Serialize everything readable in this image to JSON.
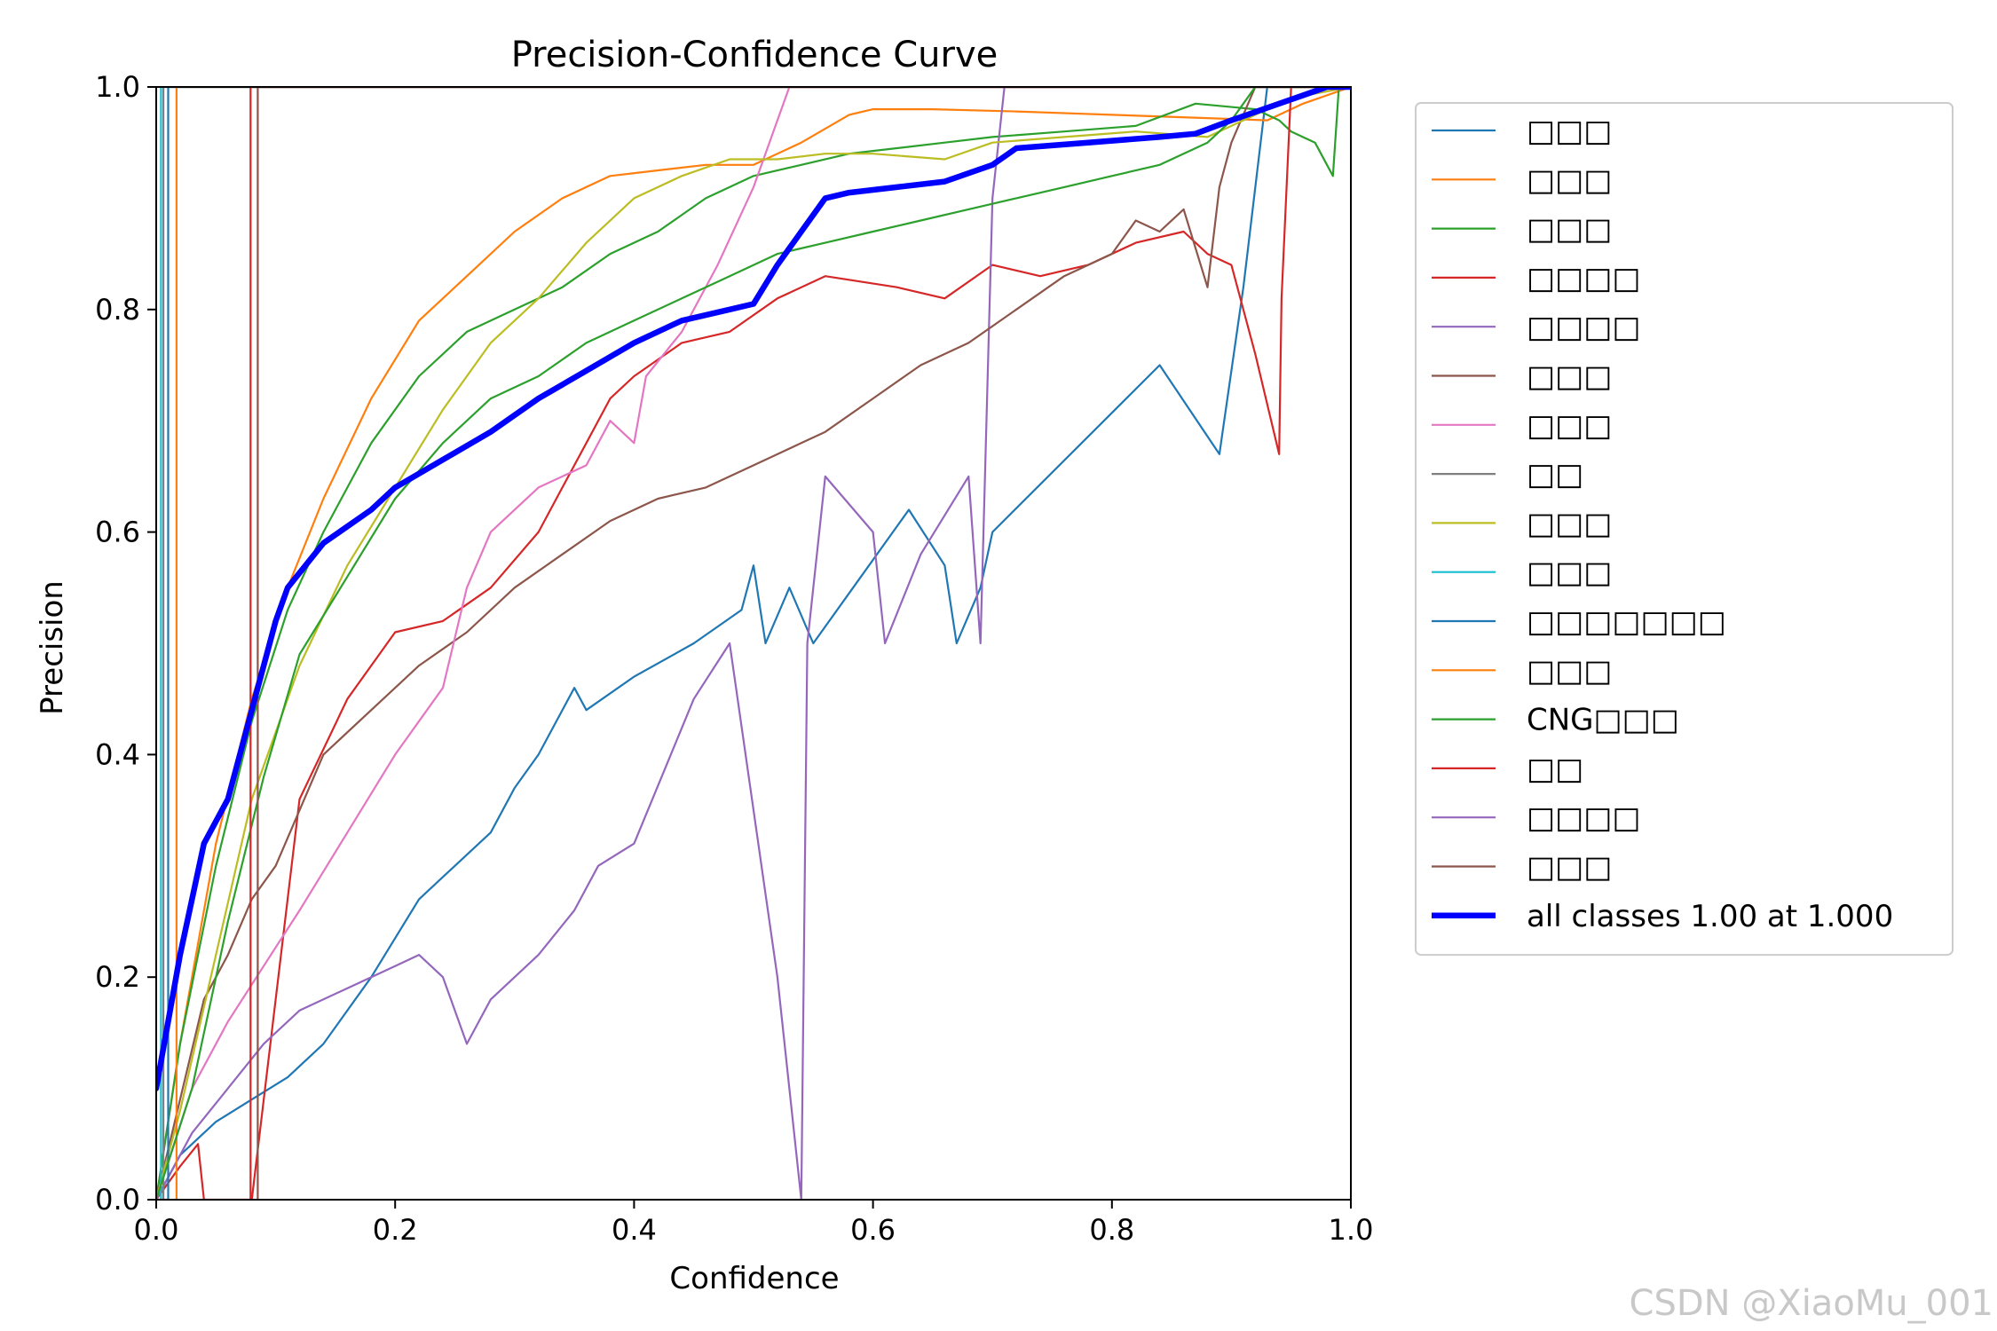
{
  "chart_data": {
    "type": "line",
    "title": "Precision-Confidence Curve",
    "xlabel": "Confidence",
    "ylabel": "Precision",
    "xlim": [
      0.0,
      1.0
    ],
    "ylim": [
      0.0,
      1.0
    ],
    "xticks": [
      "0.0",
      "0.2",
      "0.4",
      "0.6",
      "0.8",
      "1.0"
    ],
    "yticks": [
      "0.0",
      "0.2",
      "0.4",
      "0.6",
      "0.8",
      "1.0"
    ],
    "legend_position": "outside-right",
    "series": [
      {
        "name": "□□□",
        "color": "#1f77b4",
        "width": 2.2,
        "x": [
          0.0,
          0.02,
          0.05,
          0.08,
          0.11,
          0.14,
          0.18,
          0.22,
          0.25,
          0.28,
          0.3,
          0.32,
          0.35,
          0.36,
          0.4,
          0.45,
          0.49,
          0.5,
          0.51,
          0.53,
          0.55,
          0.59,
          0.63,
          0.66,
          0.67,
          0.69,
          0.7,
          0.84,
          0.89,
          0.91,
          0.93,
          0.96,
          0.98,
          1.0
        ],
        "y": [
          0.0,
          0.04,
          0.07,
          0.09,
          0.11,
          0.14,
          0.2,
          0.27,
          0.3,
          0.33,
          0.37,
          0.4,
          0.46,
          0.44,
          0.47,
          0.5,
          0.53,
          0.57,
          0.5,
          0.55,
          0.5,
          0.56,
          0.62,
          0.57,
          0.5,
          0.55,
          0.6,
          0.75,
          0.67,
          0.82,
          1.0,
          1.0,
          1.0,
          1.0
        ]
      },
      {
        "name": "□□□",
        "color": "#ff7f0e",
        "width": 2.2,
        "x": [
          0.0,
          0.02,
          0.05,
          0.08,
          0.11,
          0.14,
          0.18,
          0.22,
          0.26,
          0.3,
          0.34,
          0.38,
          0.42,
          0.46,
          0.5,
          0.54,
          0.58,
          0.6,
          0.65,
          0.72,
          0.8,
          0.88,
          0.93,
          0.96,
          1.0
        ],
        "y": [
          0.0,
          0.14,
          0.32,
          0.45,
          0.55,
          0.63,
          0.72,
          0.79,
          0.83,
          0.87,
          0.9,
          0.92,
          0.925,
          0.93,
          0.93,
          0.95,
          0.975,
          0.98,
          0.98,
          0.978,
          0.975,
          0.972,
          0.97,
          0.985,
          1.0
        ]
      },
      {
        "name": "□□□",
        "color": "#2ca02c",
        "width": 2.2,
        "x": [
          0.0,
          0.02,
          0.05,
          0.08,
          0.11,
          0.14,
          0.18,
          0.22,
          0.26,
          0.3,
          0.34,
          0.38,
          0.42,
          0.46,
          0.5,
          0.54,
          0.58,
          0.62,
          0.66,
          0.7,
          0.76,
          0.82,
          0.87,
          0.92,
          0.94,
          0.95,
          0.97,
          0.985,
          0.99,
          1.0
        ],
        "y": [
          0.0,
          0.14,
          0.3,
          0.43,
          0.53,
          0.6,
          0.68,
          0.74,
          0.78,
          0.8,
          0.82,
          0.85,
          0.87,
          0.9,
          0.92,
          0.93,
          0.94,
          0.945,
          0.95,
          0.955,
          0.96,
          0.965,
          0.985,
          0.98,
          0.97,
          0.96,
          0.95,
          0.92,
          1.0,
          1.0
        ]
      },
      {
        "name": "□□□□",
        "color": "#d62728",
        "width": 2.2,
        "x": [
          0.0,
          0.02,
          0.035,
          0.04,
          0.08,
          0.12,
          0.16,
          0.2,
          0.24,
          0.28,
          0.32,
          0.34,
          0.36,
          0.38,
          0.4,
          0.44,
          0.48,
          0.52,
          0.56,
          0.62,
          0.66,
          0.7,
          0.74,
          0.78,
          0.82,
          0.86,
          0.88,
          0.9,
          0.92,
          0.94,
          0.942,
          0.95,
          1.0
        ],
        "y": [
          0.0,
          0.03,
          0.05,
          0.0,
          0.0,
          0.36,
          0.45,
          0.51,
          0.52,
          0.55,
          0.6,
          0.64,
          0.68,
          0.72,
          0.74,
          0.77,
          0.78,
          0.81,
          0.83,
          0.82,
          0.81,
          0.84,
          0.83,
          0.84,
          0.86,
          0.87,
          0.85,
          0.84,
          0.76,
          0.67,
          0.81,
          1.0,
          1.0
        ]
      },
      {
        "name": "□□□□",
        "color": "#9467bd",
        "width": 2.2,
        "x": [
          0.0,
          0.03,
          0.06,
          0.09,
          0.12,
          0.16,
          0.2,
          0.22,
          0.24,
          0.26,
          0.28,
          0.32,
          0.35,
          0.37,
          0.4,
          0.45,
          0.48,
          0.52,
          0.54,
          0.545,
          0.56,
          0.6,
          0.61,
          0.64,
          0.68,
          0.69,
          0.7,
          0.71,
          0.72,
          1.0
        ],
        "y": [
          0.0,
          0.06,
          0.1,
          0.14,
          0.17,
          0.19,
          0.21,
          0.22,
          0.2,
          0.14,
          0.18,
          0.22,
          0.26,
          0.3,
          0.32,
          0.45,
          0.5,
          0.2,
          0.0,
          0.5,
          0.65,
          0.6,
          0.5,
          0.58,
          0.65,
          0.5,
          0.9,
          1.0,
          1.0,
          1.0
        ]
      },
      {
        "name": "□□□",
        "color": "#8c564b",
        "width": 2.2,
        "x": [
          0.0,
          0.04,
          0.06,
          0.08,
          0.1,
          0.14,
          0.18,
          0.22,
          0.26,
          0.3,
          0.34,
          0.38,
          0.42,
          0.46,
          0.5,
          0.54,
          0.56,
          0.6,
          0.64,
          0.68,
          0.72,
          0.76,
          0.8,
          0.82,
          0.84,
          0.86,
          0.88,
          0.89,
          0.9,
          0.92,
          1.0
        ],
        "y": [
          0.0,
          0.18,
          0.22,
          0.27,
          0.3,
          0.4,
          0.44,
          0.48,
          0.51,
          0.55,
          0.58,
          0.61,
          0.63,
          0.64,
          0.66,
          0.68,
          0.69,
          0.72,
          0.75,
          0.77,
          0.8,
          0.83,
          0.85,
          0.88,
          0.87,
          0.89,
          0.82,
          0.91,
          0.95,
          1.0,
          1.0
        ]
      },
      {
        "name": "□□□",
        "color": "#e377c2",
        "width": 2.2,
        "x": [
          0.0,
          0.03,
          0.06,
          0.09,
          0.12,
          0.16,
          0.2,
          0.24,
          0.26,
          0.28,
          0.32,
          0.36,
          0.38,
          0.4,
          0.41,
          0.44,
          0.47,
          0.5,
          0.52,
          0.53,
          1.0
        ],
        "y": [
          0.0,
          0.1,
          0.16,
          0.21,
          0.26,
          0.33,
          0.4,
          0.46,
          0.55,
          0.6,
          0.64,
          0.66,
          0.7,
          0.68,
          0.74,
          0.78,
          0.84,
          0.91,
          0.97,
          1.0,
          1.0
        ]
      },
      {
        "name": "□□",
        "color": "#7f7f7f",
        "width": 2.2,
        "x": [
          0.006,
          0.006,
          0.007,
          0.007,
          1.0
        ],
        "y": [
          0.0,
          1.0,
          1.0,
          1.0,
          1.0
        ]
      },
      {
        "name": "□□□",
        "color": "#bcbd22",
        "width": 2.2,
        "x": [
          0.0,
          0.02,
          0.05,
          0.08,
          0.12,
          0.16,
          0.2,
          0.24,
          0.28,
          0.32,
          0.36,
          0.4,
          0.44,
          0.48,
          0.52,
          0.56,
          0.6,
          0.66,
          0.7,
          0.76,
          0.82,
          0.88,
          0.92,
          0.95,
          1.0
        ],
        "y": [
          0.0,
          0.08,
          0.22,
          0.36,
          0.48,
          0.57,
          0.64,
          0.71,
          0.77,
          0.81,
          0.86,
          0.9,
          0.92,
          0.935,
          0.935,
          0.94,
          0.94,
          0.935,
          0.95,
          0.955,
          0.96,
          0.955,
          0.975,
          0.99,
          1.0
        ]
      },
      {
        "name": "□□□",
        "color": "#17becf",
        "width": 2.2,
        "x": [
          0.004,
          0.004,
          0.005,
          1.0
        ],
        "y": [
          0.0,
          1.0,
          1.0,
          1.0
        ]
      },
      {
        "name": "□□□□□□□",
        "color": "#1f77b4",
        "width": 2.2,
        "x": [
          0.01,
          0.01,
          0.012,
          1.0
        ],
        "y": [
          0.0,
          1.0,
          1.0,
          1.0
        ]
      },
      {
        "name": "□□□",
        "color": "#ff7f0e",
        "width": 2.2,
        "x": [
          0.017,
          0.017,
          0.018,
          1.0
        ],
        "y": [
          0.0,
          1.0,
          1.0,
          1.0
        ]
      },
      {
        "name": "CNG□□□",
        "color": "#2ca02c",
        "width": 2.2,
        "x": [
          0.0,
          0.03,
          0.06,
          0.09,
          0.12,
          0.16,
          0.2,
          0.24,
          0.28,
          0.32,
          0.36,
          0.4,
          0.44,
          0.48,
          0.52,
          0.56,
          0.6,
          0.64,
          0.68,
          0.72,
          0.76,
          0.8,
          0.84,
          0.88,
          0.9,
          0.92,
          1.0
        ],
        "y": [
          0.0,
          0.1,
          0.25,
          0.38,
          0.49,
          0.56,
          0.63,
          0.68,
          0.72,
          0.74,
          0.77,
          0.79,
          0.81,
          0.83,
          0.85,
          0.86,
          0.87,
          0.88,
          0.89,
          0.9,
          0.91,
          0.92,
          0.93,
          0.95,
          0.97,
          1.0,
          1.0
        ]
      },
      {
        "name": "□□",
        "color": "#d62728",
        "width": 2.2,
        "x": [
          0.079,
          0.079,
          0.081,
          1.0
        ],
        "y": [
          0.0,
          1.0,
          1.0,
          1.0
        ]
      },
      {
        "name": "□□□□",
        "color": "#9467bd",
        "width": 2.2,
        "x": [
          0.0,
          0.008,
          0.01
        ],
        "y": [
          0.0,
          0.0,
          0.0
        ]
      },
      {
        "name": "□□□",
        "color": "#8c564b",
        "width": 2.2,
        "x": [
          0.085,
          0.085,
          0.087,
          1.0
        ],
        "y": [
          0.0,
          1.0,
          1.0,
          1.0
        ]
      },
      {
        "name": "all classes 1.00 at 1.000",
        "color": "#0000ff",
        "width": 6.5,
        "x": [
          0.0,
          0.02,
          0.04,
          0.06,
          0.08,
          0.1,
          0.11,
          0.14,
          0.18,
          0.2,
          0.24,
          0.28,
          0.32,
          0.36,
          0.4,
          0.44,
          0.48,
          0.5,
          0.52,
          0.54,
          0.56,
          0.58,
          0.62,
          0.66,
          0.7,
          0.72,
          0.78,
          0.84,
          0.87,
          0.9,
          0.94,
          0.98,
          1.0
        ],
        "y": [
          0.1,
          0.22,
          0.32,
          0.36,
          0.44,
          0.52,
          0.55,
          0.59,
          0.62,
          0.64,
          0.665,
          0.69,
          0.72,
          0.745,
          0.77,
          0.79,
          0.8,
          0.805,
          0.84,
          0.87,
          0.9,
          0.905,
          0.91,
          0.915,
          0.93,
          0.945,
          0.95,
          0.955,
          0.958,
          0.97,
          0.985,
          1.0,
          1.0
        ]
      }
    ]
  },
  "watermark": "CSDN @XiaoMu_001"
}
